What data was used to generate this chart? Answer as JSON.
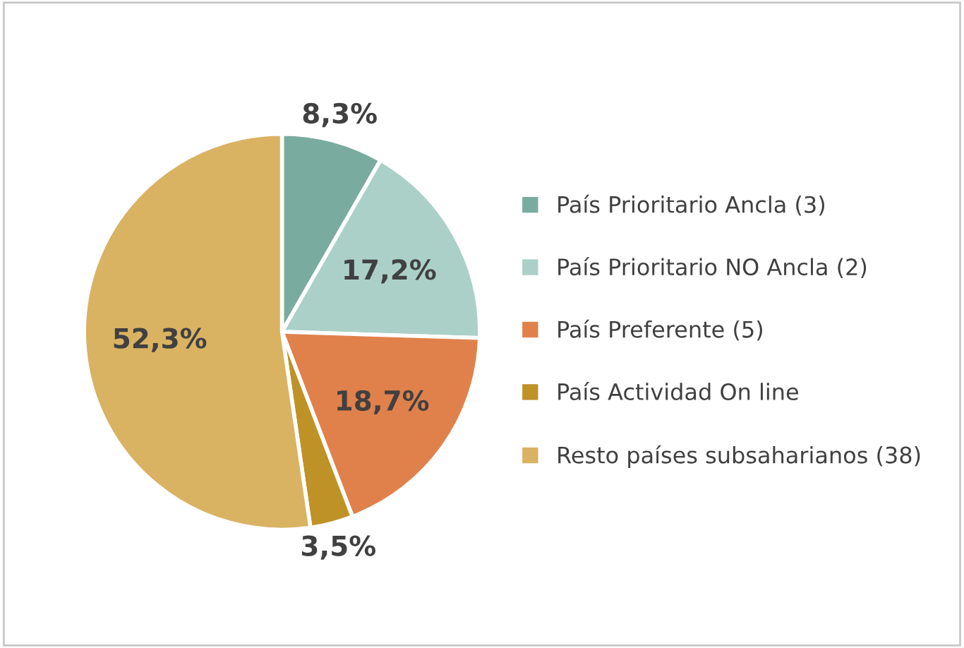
{
  "chart_data": {
    "type": "pie",
    "categories": [
      "País Prioritario Ancla (3)",
      "País Prioritario NO Ancla (2)",
      "País Preferente (5)",
      "País Actividad On line",
      "Resto países subsaharianos (38)"
    ],
    "values": [
      8.3,
      17.2,
      18.7,
      3.5,
      52.3
    ],
    "value_labels": [
      "8,3%",
      "17,2%",
      "18,7%",
      "3,5%",
      "52,3%"
    ],
    "colors": [
      "#7aab9f",
      "#abd0c7",
      "#e0814b",
      "#bf9228",
      "#d9b262"
    ],
    "legend": "right"
  }
}
